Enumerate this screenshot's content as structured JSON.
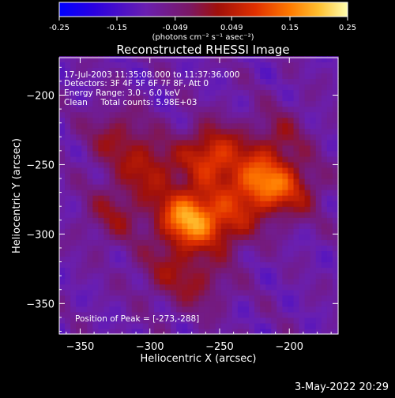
{
  "chart_data": {
    "type": "heatmap",
    "title": "Reconstructed RHESSI Image",
    "xlabel": "Heliocentric X (arcsec)",
    "ylabel": "Heliocentric Y (arcsec)",
    "xlim": [
      -365,
      -165
    ],
    "ylim": [
      -372,
      -173
    ],
    "x_ticks": [
      -350,
      -300,
      -250,
      -200
    ],
    "y_ticks": [
      -200,
      -250,
      -300,
      -350
    ],
    "colorbar": {
      "ticks": [
        "-0.25",
        "-0.15",
        "-0.049",
        "0.049",
        "0.15",
        "0.25"
      ],
      "range": [
        -0.25,
        0.25
      ],
      "unit_label": "(photons cm⁻² s⁻¹ asec⁻²)"
    },
    "annotations": [
      "17-Jul-2003 11:35:08.000 to 11:37:36.000",
      "Detectors: 3F 4F 5F 6F 7F 8F, Att 0",
      "Energy Range: 3.0 - 6.0 keV",
      "Clean     Total counts: 5.98E+03"
    ],
    "peak_label": "Position of Peak = [-273,-288]",
    "peak_position": [
      -273,
      -288
    ],
    "peak_value": 0.25,
    "sources": [
      {
        "x": -273,
        "y": -288,
        "amp": 0.25
      },
      {
        "x": -255,
        "y": -243,
        "amp": 0.18
      },
      {
        "x": -222,
        "y": -263,
        "amp": 0.2
      },
      {
        "x": -300,
        "y": -252,
        "amp": 0.12
      },
      {
        "x": -325,
        "y": -230,
        "amp": 0.09
      },
      {
        "x": -325,
        "y": -285,
        "amp": 0.09
      },
      {
        "x": -245,
        "y": -292,
        "amp": 0.12
      },
      {
        "x": -198,
        "y": -268,
        "amp": 0.11
      },
      {
        "x": -208,
        "y": -230,
        "amp": 0.08
      },
      {
        "x": -265,
        "y": -335,
        "amp": 0.08
      },
      {
        "x": -290,
        "y": -325,
        "amp": 0.07
      }
    ]
  },
  "footer": {
    "date": "3-May-2022 20:29"
  },
  "colors": {
    "background": "#000000",
    "axes": "#ffffff"
  }
}
